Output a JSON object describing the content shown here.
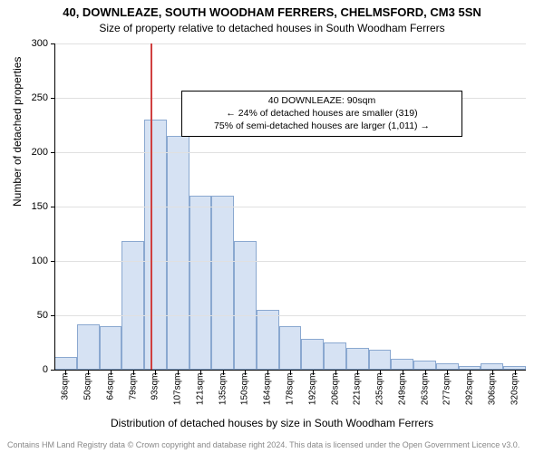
{
  "title_line1": "40, DOWNLEAZE, SOUTH WOODHAM FERRERS, CHELMSFORD, CM3 5SN",
  "title_line2": "Size of property relative to detached houses in South Woodham Ferrers",
  "ylabel": "Number of detached properties",
  "xlabel": "Distribution of detached houses by size in South Woodham Ferrers",
  "license": "Contains HM Land Registry data © Crown copyright and database right 2024. This data is licensed under the Open Government Licence v3.0.",
  "callout": {
    "line1": "40 DOWNLEAZE: 90sqm",
    "line2": "← 24% of detached houses are smaller (319)",
    "line3": "75% of semi-detached houses are larger (1,011) →"
  },
  "chart": {
    "type": "histogram",
    "ylim": [
      0,
      300
    ],
    "yticks": [
      0,
      50,
      100,
      150,
      200,
      250,
      300
    ],
    "bar_color": "#d6e2f3",
    "bar_border_color": "#8aa8d0",
    "background_color": "#ffffff",
    "grid_color": "#e0e0e0",
    "marker_color": "#d04040",
    "marker_value": 90,
    "x_start": 29,
    "x_end": 327,
    "categories": [
      "36sqm",
      "50sqm",
      "64sqm",
      "79sqm",
      "93sqm",
      "107sqm",
      "121sqm",
      "135sqm",
      "150sqm",
      "164sqm",
      "178sqm",
      "192sqm",
      "206sqm",
      "221sqm",
      "235sqm",
      "249sqm",
      "263sqm",
      "277sqm",
      "292sqm",
      "306sqm",
      "320sqm"
    ],
    "values": [
      12,
      42,
      40,
      118,
      230,
      215,
      160,
      160,
      118,
      55,
      40,
      28,
      25,
      20,
      18,
      10,
      8,
      6,
      3,
      6,
      3
    ],
    "title_fontsize": 13,
    "axis_fontsize": 12,
    "tick_fontsize": 11
  }
}
